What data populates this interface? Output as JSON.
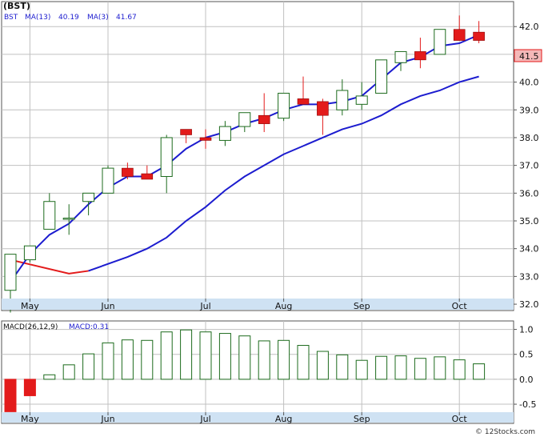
{
  "colors": {
    "background": "#ffffff",
    "grid": "#c0c0c0",
    "axis_band": "#cfe2f3",
    "up_candle_border": "#1d6b1d",
    "down_candle": "#e31b1b",
    "ma13_line": "#e31b1b",
    "ma3_line": "#1c1ccf",
    "macd_bar_up": "#1d6b1d",
    "macd_bar_down": "#e31b1b",
    "price_tag_bg": "#f4b8b8",
    "price_tag_border": "#e31b1b"
  },
  "header": {
    "ticker": "(BST)",
    "symbol": "BST",
    "ma13_label": "MA(13)",
    "ma13_value": "40.19",
    "ma3_label": "MA(3)",
    "ma3_value": "41.67",
    "macd_label": "MACD(26,12,9)",
    "macd_value_label": "MACD:0.31"
  },
  "credit": "© 12Stocks.com",
  "chart_data": [
    {
      "type": "candlestick",
      "ticker": "BST",
      "price_tag": "41.5",
      "y_ticks": [
        "42.0",
        "41.0",
        "40.0",
        "39.0",
        "38.0",
        "37.0",
        "36.0",
        "35.0",
        "34.0",
        "33.0",
        "32.0"
      ],
      "ylim": [
        31.8,
        42.9
      ],
      "x_ticks": [
        {
          "label": "May",
          "index": 1
        },
        {
          "label": "Jun",
          "index": 5
        },
        {
          "label": "Jul",
          "index": 10
        },
        {
          "label": "Aug",
          "index": 14
        },
        {
          "label": "Sep",
          "index": 18
        },
        {
          "label": "Oct",
          "index": 23
        }
      ],
      "candles": [
        {
          "o": 32.5,
          "h": 33.8,
          "l": 31.7,
          "c": 33.8
        },
        {
          "o": 33.6,
          "h": 34.1,
          "l": 33.5,
          "c": 34.1
        },
        {
          "o": 34.7,
          "h": 36.0,
          "l": 34.7,
          "c": 35.7
        },
        {
          "o": 35.1,
          "h": 35.6,
          "l": 34.5,
          "c": 35.1
        },
        {
          "o": 35.7,
          "h": 36.0,
          "l": 35.2,
          "c": 36.0
        },
        {
          "o": 36.0,
          "h": 37.0,
          "l": 36.0,
          "c": 36.9
        },
        {
          "o": 36.9,
          "h": 37.1,
          "l": 36.5,
          "c": 36.6
        },
        {
          "o": 36.7,
          "h": 37.0,
          "l": 36.5,
          "c": 36.5
        },
        {
          "o": 36.6,
          "h": 38.1,
          "l": 36.0,
          "c": 38.0
        },
        {
          "o": 38.3,
          "h": 38.3,
          "l": 37.8,
          "c": 38.1
        },
        {
          "o": 38.0,
          "h": 38.3,
          "l": 37.6,
          "c": 37.9
        },
        {
          "o": 37.9,
          "h": 38.6,
          "l": 37.7,
          "c": 38.4
        },
        {
          "o": 38.4,
          "h": 38.9,
          "l": 38.2,
          "c": 38.9
        },
        {
          "o": 38.8,
          "h": 39.6,
          "l": 38.2,
          "c": 38.5
        },
        {
          "o": 38.7,
          "h": 39.6,
          "l": 38.6,
          "c": 39.6
        },
        {
          "o": 39.4,
          "h": 40.2,
          "l": 39.2,
          "c": 39.2
        },
        {
          "o": 39.3,
          "h": 39.4,
          "l": 38.1,
          "c": 38.8
        },
        {
          "o": 39.0,
          "h": 40.1,
          "l": 38.8,
          "c": 39.7
        },
        {
          "o": 39.2,
          "h": 40.0,
          "l": 39.0,
          "c": 39.5
        },
        {
          "o": 39.6,
          "h": 40.8,
          "l": 39.6,
          "c": 40.8
        },
        {
          "o": 40.7,
          "h": 41.1,
          "l": 40.4,
          "c": 41.1
        },
        {
          "o": 41.1,
          "h": 41.6,
          "l": 40.5,
          "c": 40.8
        },
        {
          "o": 41.0,
          "h": 41.9,
          "l": 41.0,
          "c": 41.9
        },
        {
          "o": 41.9,
          "h": 42.4,
          "l": 41.5,
          "c": 41.5
        },
        {
          "o": 41.8,
          "h": 42.2,
          "l": 41.4,
          "c": 41.5
        }
      ],
      "series": [
        {
          "name": "MA(13)",
          "values": [
            33.6,
            null,
            null,
            33.1,
            33.2,
            null,
            33.7,
            34.0,
            34.4,
            35.0,
            35.5,
            36.1,
            36.6,
            37.0,
            37.4,
            37.7,
            38.0,
            38.3,
            38.5,
            38.8,
            39.2,
            39.5,
            39.7,
            40.0,
            40.2
          ]
        },
        {
          "name": "MA(3)",
          "values": [
            32.8,
            33.8,
            34.5,
            34.9,
            35.6,
            36.2,
            36.6,
            36.6,
            37.0,
            37.6,
            38.0,
            38.2,
            38.5,
            38.7,
            39.0,
            39.2,
            39.2,
            39.3,
            39.5,
            40.1,
            40.7,
            40.9,
            41.3,
            41.4,
            41.7
          ]
        }
      ]
    },
    {
      "type": "bar",
      "title": "MACD(26,12,9)",
      "value_label": "MACD:0.31",
      "y_ticks": [
        "1.0",
        "0.5",
        "0.0",
        "-0.5"
      ],
      "ylim": [
        -0.66,
        1.17
      ],
      "x_ticks": [
        {
          "label": "May",
          "index": 1
        },
        {
          "label": "Jun",
          "index": 5
        },
        {
          "label": "Jul",
          "index": 10
        },
        {
          "label": "Aug",
          "index": 14
        },
        {
          "label": "Sep",
          "index": 18
        },
        {
          "label": "Oct",
          "index": 23
        }
      ],
      "values": [
        -0.65,
        -0.33,
        0.09,
        0.29,
        0.51,
        0.73,
        0.79,
        0.78,
        0.95,
        0.99,
        0.95,
        0.92,
        0.87,
        0.77,
        0.78,
        0.68,
        0.56,
        0.49,
        0.38,
        0.46,
        0.47,
        0.42,
        0.45,
        0.39,
        0.31
      ]
    }
  ]
}
